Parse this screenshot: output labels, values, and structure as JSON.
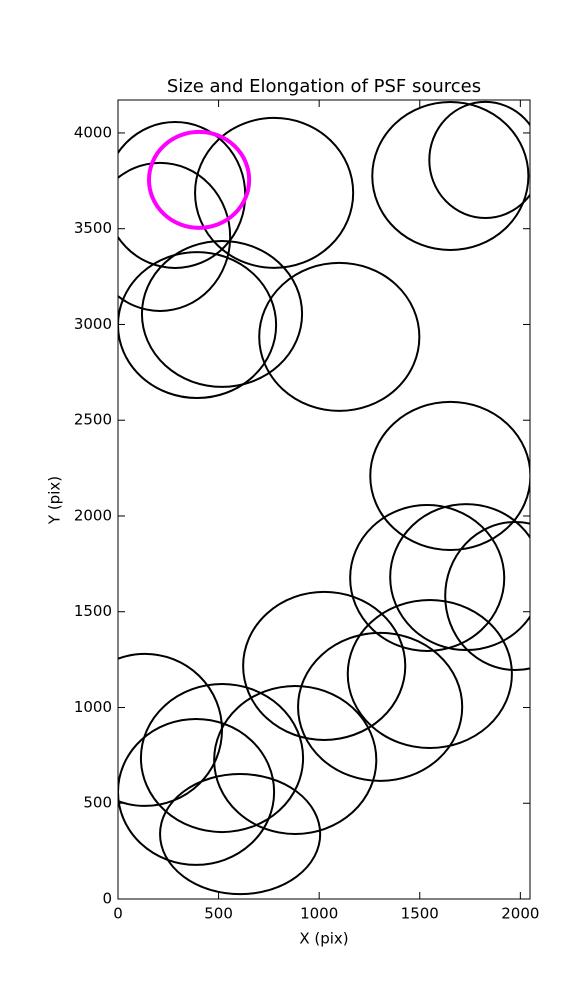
{
  "chart_data": {
    "type": "ellipse",
    "title": "Size and Elongation of PSF sources",
    "x_label": "X (pix)",
    "y_label": "Y (pix)",
    "xlim": [
      0,
      2048
    ],
    "ylim": [
      0,
      4172
    ],
    "xticks": [
      0,
      500,
      1000,
      1500,
      2000
    ],
    "yticks": [
      0,
      500,
      1000,
      1500,
      2000,
      2500,
      3000,
      3500,
      4000
    ],
    "x": [
      284,
      209,
      776,
      403,
      1652,
      1826,
      517,
      393,
      1100,
      1652,
      1537,
      1731,
      1975,
      1025,
      1550,
      1303,
      134,
      517,
      881,
      388,
      607
    ],
    "y": [
      3676,
      3457,
      3687,
      3755,
      3775,
      3859,
      3055,
      2997,
      2935,
      2209,
      1676,
      1681,
      1582,
      1217,
      1175,
      1003,
      883,
      736,
      726,
      559,
      339
    ],
    "width": [
      697,
      697,
      786,
      498,
      776,
      557,
      796,
      786,
      796,
      796,
      766,
      756,
      697,
      806,
      816,
      816,
      766,
      806,
      806,
      776,
      796
    ],
    "height": [
      762,
      773,
      783,
      501,
      773,
      606,
      762,
      762,
      773,
      773,
      762,
      762,
      773,
      773,
      773,
      773,
      794,
      773,
      773,
      762,
      627
    ],
    "colors": [
      "#000000",
      "#000000",
      "#000000",
      "#ff00ff",
      "#000000",
      "#000000",
      "#000000",
      "#000000",
      "#000000",
      "#000000",
      "#000000",
      "#000000",
      "#000000",
      "#000000",
      "#000000",
      "#000000",
      "#000000",
      "#000000",
      "#000000",
      "#000000",
      "#000000"
    ],
    "line_widths": [
      2,
      2,
      2,
      4,
      2,
      2,
      2,
      2,
      2,
      2,
      2,
      2,
      2,
      2,
      2,
      2,
      2,
      2,
      2,
      2,
      2
    ]
  }
}
